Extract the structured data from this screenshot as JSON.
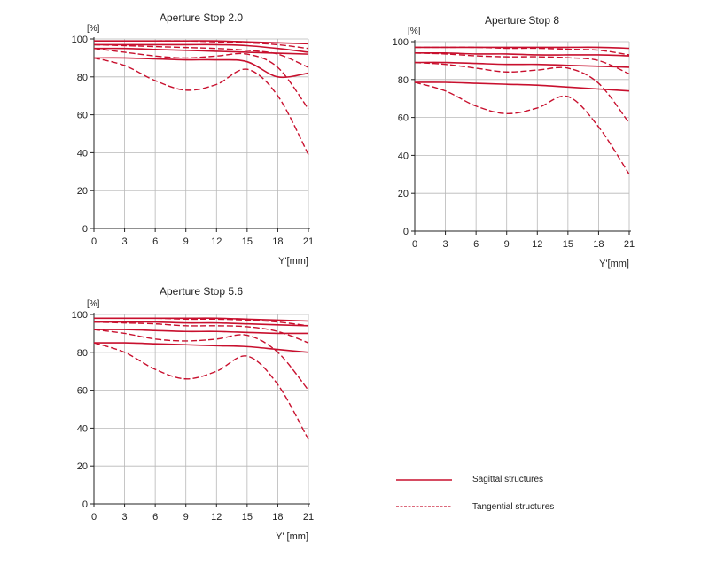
{
  "chart_data": [
    {
      "type": "line",
      "title": "Aperture Stop 2.0",
      "ylabel": "[%]",
      "xlabel": "Y'[mm]",
      "x_ticks": [
        0,
        3,
        6,
        9,
        12,
        15,
        18,
        21
      ],
      "y_ticks": [
        0,
        20,
        40,
        60,
        80,
        100
      ],
      "xlim": [
        0,
        21
      ],
      "ylim": [
        0,
        100
      ],
      "grid": true,
      "x": [
        0,
        3,
        6,
        9,
        12,
        15,
        18,
        21
      ],
      "series": [
        {
          "name": "Sagittal structures",
          "style": "solid",
          "values": [
            99,
            99,
            99,
            99,
            99,
            98.5,
            98,
            97.5
          ]
        },
        {
          "name": "Tangential structures",
          "style": "dashed",
          "values": [
            99,
            99,
            99,
            99,
            98.5,
            98,
            97,
            95
          ]
        },
        {
          "name": "Sagittal structures",
          "style": "solid",
          "values": [
            97,
            97,
            97,
            97,
            97,
            96.5,
            95,
            93
          ]
        },
        {
          "name": "Tangential structures",
          "style": "dashed",
          "values": [
            97,
            96.5,
            96,
            95.5,
            95,
            94,
            92,
            85
          ]
        },
        {
          "name": "Sagittal structures",
          "style": "solid",
          "values": [
            95,
            95,
            94.5,
            94,
            93.5,
            93,
            92.5,
            92
          ]
        },
        {
          "name": "Tangential structures",
          "style": "dashed",
          "values": [
            95,
            93,
            91,
            90,
            91,
            92,
            85,
            63
          ]
        },
        {
          "name": "Sagittal structures",
          "style": "solid",
          "values": [
            90,
            90,
            89.5,
            89,
            89,
            88,
            80,
            82
          ]
        },
        {
          "name": "Tangential structures",
          "style": "dashed",
          "values": [
            90,
            86,
            78,
            73,
            76,
            84,
            70,
            39
          ]
        }
      ]
    },
    {
      "type": "line",
      "title": "Aperture Stop 8",
      "ylabel": "[%]",
      "xlabel": "Y'[mm]",
      "x_ticks": [
        0,
        3,
        6,
        9,
        12,
        15,
        18,
        21
      ],
      "y_ticks": [
        0,
        20,
        40,
        60,
        80,
        100
      ],
      "xlim": [
        0,
        21
      ],
      "ylim": [
        0,
        100
      ],
      "grid": true,
      "x": [
        0,
        3,
        6,
        9,
        12,
        15,
        18,
        21
      ],
      "series": [
        {
          "name": "Sagittal structures",
          "style": "solid",
          "values": [
            97,
            97,
            97,
            97,
            97,
            97,
            97,
            96.5
          ]
        },
        {
          "name": "Tangential structures",
          "style": "dashed",
          "values": [
            97,
            97,
            97,
            96.5,
            96.5,
            96,
            95.5,
            93
          ]
        },
        {
          "name": "Sagittal structures",
          "style": "solid",
          "values": [
            94,
            94,
            93.5,
            93.5,
            93,
            93,
            93,
            92.5
          ]
        },
        {
          "name": "Tangential structures",
          "style": "dashed",
          "values": [
            94,
            93.5,
            92.5,
            92,
            92,
            91.5,
            90,
            83
          ]
        },
        {
          "name": "Sagittal structures",
          "style": "solid",
          "values": [
            89,
            89,
            88.5,
            88,
            88,
            87.5,
            87,
            86.5
          ]
        },
        {
          "name": "Tangential structures",
          "style": "dashed",
          "values": [
            89,
            88,
            86,
            84,
            85,
            86,
            78,
            57
          ]
        },
        {
          "name": "Sagittal structures",
          "style": "solid",
          "values": [
            78.5,
            78.5,
            78,
            77.5,
            77,
            76,
            75,
            74
          ]
        },
        {
          "name": "Tangential structures",
          "style": "dashed",
          "values": [
            78.5,
            74,
            66,
            62,
            65,
            71,
            55,
            30
          ]
        }
      ]
    },
    {
      "type": "line",
      "title": "Aperture Stop 5.6",
      "ylabel": "[%]",
      "xlabel": "Y' [mm]",
      "x_ticks": [
        0,
        3,
        6,
        9,
        12,
        15,
        18,
        21
      ],
      "y_ticks": [
        0,
        20,
        40,
        60,
        80,
        100
      ],
      "xlim": [
        0,
        21
      ],
      "ylim": [
        0,
        100
      ],
      "grid": true,
      "x": [
        0,
        3,
        6,
        9,
        12,
        15,
        18,
        21
      ],
      "series": [
        {
          "name": "Sagittal structures",
          "style": "solid",
          "values": [
            98,
            98,
            98,
            98,
            98,
            97.5,
            97,
            96.5
          ]
        },
        {
          "name": "Tangential structures",
          "style": "dashed",
          "values": [
            98,
            98,
            98,
            97.5,
            97.5,
            97,
            96,
            94
          ]
        },
        {
          "name": "Sagittal structures",
          "style": "solid",
          "values": [
            96,
            96,
            96,
            95.5,
            95.5,
            95,
            94.5,
            94
          ]
        },
        {
          "name": "Tangential structures",
          "style": "dashed",
          "values": [
            96,
            95.5,
            95,
            94,
            94,
            93.5,
            91,
            85
          ]
        },
        {
          "name": "Sagittal structures",
          "style": "solid",
          "values": [
            92,
            92,
            91.5,
            91,
            91,
            90.5,
            90,
            90
          ]
        },
        {
          "name": "Tangential structures",
          "style": "dashed",
          "values": [
            92,
            90,
            87,
            86,
            87,
            89,
            80,
            60
          ]
        },
        {
          "name": "Sagittal structures",
          "style": "solid",
          "values": [
            85,
            85,
            84.5,
            84,
            83.5,
            83,
            81.5,
            80
          ]
        },
        {
          "name": "Tangential structures",
          "style": "dashed",
          "values": [
            85,
            80,
            71,
            66,
            70,
            78,
            63,
            34
          ]
        }
      ]
    }
  ],
  "legend": {
    "sagittal_label": "Sagittal structures",
    "tangential_label": "Tangential structures"
  },
  "colors": {
    "curve": "#c8102e",
    "grid": "#b8b8b8",
    "axis": "#222222"
  }
}
